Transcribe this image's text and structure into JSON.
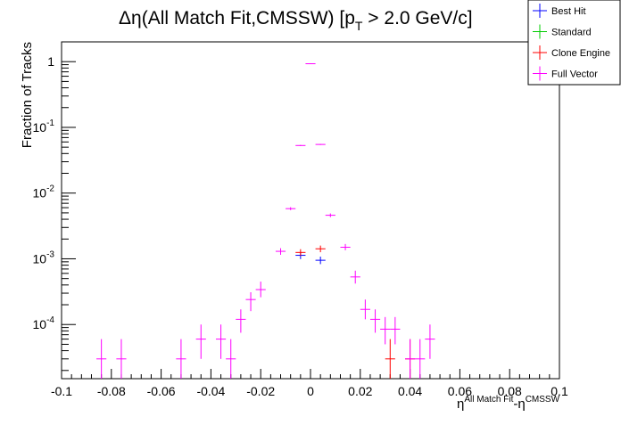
{
  "chart_data": {
    "type": "scatter",
    "title_main": "Δη(All Match Fit,CMSSW) [p",
    "title_sub": "T",
    "title_tail": " > 2.0 GeV/c]",
    "ylabel": "Fraction of Tracks",
    "xlabel_parts": {
      "base1": "η",
      "sup1": "All Match Fit",
      "mid": "-η",
      "sup2": "CMSSW"
    },
    "xlim": [
      -0.1,
      0.1
    ],
    "ylim": [
      1.5e-05,
      2.0
    ],
    "yscale": "log",
    "grid": false,
    "legend_position": "top-right",
    "x_tick_labels": [
      "-0.1",
      "-0.08",
      "-0.06",
      "-0.04",
      "-0.02",
      "0",
      "0.02",
      "0.04",
      "0.06",
      "0.08",
      "0.1"
    ],
    "y_tick_labels": [
      {
        "base": "10",
        "exp": "-4"
      },
      {
        "base": "10",
        "exp": "-3"
      },
      {
        "base": "10",
        "exp": "-2"
      },
      {
        "base": "10",
        "exp": "-1"
      },
      {
        "base": "1",
        "exp": ""
      }
    ],
    "series": [
      {
        "name": "Best Hit",
        "color": "#0000ff",
        "points": [
          {
            "x": -0.004,
            "y": 0.00113,
            "lo": 0.00099,
            "hi": 0.00128
          },
          {
            "x": 0.004,
            "y": 0.00095,
            "lo": 0.00083,
            "hi": 0.00108
          }
        ]
      },
      {
        "name": "Standard",
        "color": "#00cc00",
        "points": []
      },
      {
        "name": "Clone Engine",
        "color": "#ff0000",
        "points": [
          {
            "x": -0.004,
            "y": 0.00125,
            "lo": 0.00111,
            "hi": 0.0014
          },
          {
            "x": 0.004,
            "y": 0.00142,
            "lo": 0.00126,
            "hi": 0.00159
          },
          {
            "x": 0.032,
            "y": 3e-05,
            "lo": 1.5e-05,
            "hi": 6e-05
          },
          {
            "x": 0.04,
            "y": 3e-05,
            "lo": 1.5e-05,
            "hi": 6e-05
          }
        ]
      },
      {
        "name": "Full Vector",
        "color": "#ff00ff",
        "points": [
          {
            "x": -0.084,
            "y": 3e-05,
            "lo": 1.5e-05,
            "hi": 6e-05
          },
          {
            "x": -0.076,
            "y": 3e-05,
            "lo": 1.5e-05,
            "hi": 6e-05
          },
          {
            "x": -0.052,
            "y": 3e-05,
            "lo": 1.5e-05,
            "hi": 6e-05
          },
          {
            "x": -0.044,
            "y": 6e-05,
            "lo": 3e-05,
            "hi": 0.0001
          },
          {
            "x": -0.036,
            "y": 6e-05,
            "lo": 3e-05,
            "hi": 0.0001
          },
          {
            "x": -0.032,
            "y": 3e-05,
            "lo": 1.5e-05,
            "hi": 6e-05
          },
          {
            "x": -0.028,
            "y": 0.00012,
            "lo": 7.5e-05,
            "hi": 0.00017
          },
          {
            "x": -0.024,
            "y": 0.00024,
            "lo": 0.00016,
            "hi": 0.00031
          },
          {
            "x": -0.02,
            "y": 0.00034,
            "lo": 0.00026,
            "hi": 0.00045
          },
          {
            "x": -0.012,
            "y": 0.0013,
            "lo": 0.00115,
            "hi": 0.00145
          },
          {
            "x": -0.008,
            "y": 0.0058,
            "lo": 0.0055,
            "hi": 0.0061
          },
          {
            "x": -0.004,
            "y": 0.053,
            "lo": 0.052,
            "hi": 0.054
          },
          {
            "x": 0.0,
            "y": 0.93,
            "lo": 0.92,
            "hi": 0.94
          },
          {
            "x": 0.004,
            "y": 0.055,
            "lo": 0.054,
            "hi": 0.056
          },
          {
            "x": 0.008,
            "y": 0.0046,
            "lo": 0.0043,
            "hi": 0.0049
          },
          {
            "x": 0.014,
            "y": 0.0015,
            "lo": 0.00135,
            "hi": 0.00168
          },
          {
            "x": 0.018,
            "y": 0.00053,
            "lo": 0.00042,
            "hi": 0.00066
          },
          {
            "x": 0.022,
            "y": 0.00017,
            "lo": 0.00012,
            "hi": 0.00024
          },
          {
            "x": 0.026,
            "y": 0.00012,
            "lo": 7.5e-05,
            "hi": 0.00017
          },
          {
            "x": 0.03,
            "y": 8.5e-05,
            "lo": 5e-05,
            "hi": 0.00013
          },
          {
            "x": 0.034,
            "y": 8.5e-05,
            "lo": 5e-05,
            "hi": 0.00013
          },
          {
            "x": 0.04,
            "y": 3e-05,
            "lo": 1.5e-05,
            "hi": 6e-05
          },
          {
            "x": 0.044,
            "y": 3e-05,
            "lo": 1.5e-05,
            "hi": 6e-05
          },
          {
            "x": 0.048,
            "y": 6e-05,
            "lo": 3e-05,
            "hi": 0.0001
          }
        ]
      }
    ]
  }
}
